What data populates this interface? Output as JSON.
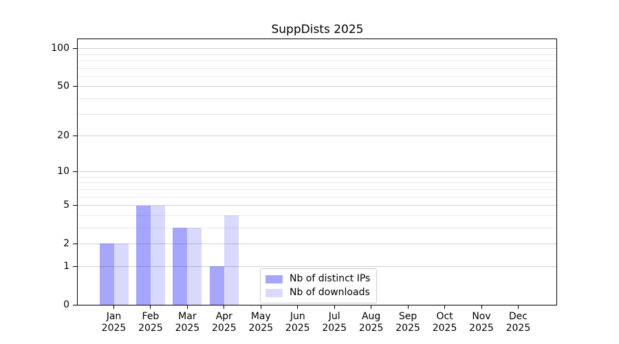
{
  "chart_data": {
    "type": "bar",
    "title": "SuppDists 2025",
    "categories": [
      "Jan",
      "Feb",
      "Mar",
      "Apr",
      "May",
      "Jun",
      "Jul",
      "Aug",
      "Sep",
      "Oct",
      "Nov",
      "Dec"
    ],
    "xtick_year": "2025",
    "series": [
      {
        "name": "Nb of distinct IPs",
        "color": "rgba(0,0,250,0.35)",
        "values": [
          2,
          5,
          3,
          1,
          0,
          0,
          0,
          0,
          0,
          0,
          0,
          0
        ]
      },
      {
        "name": "Nb of downloads",
        "color": "rgba(0,0,250,0.15)",
        "values": [
          2,
          5,
          3,
          4,
          0,
          0,
          0,
          0,
          0,
          0,
          0,
          0
        ]
      }
    ],
    "xlabel": "",
    "ylabel": "",
    "yscale": "log1p",
    "ylim": [
      0,
      119
    ],
    "yticks": [
      0,
      1,
      2,
      5,
      10,
      20,
      50,
      100
    ],
    "minor_yticks": [
      3,
      4,
      6,
      7,
      8,
      9,
      30,
      40,
      60,
      70,
      80,
      90
    ],
    "grid": true,
    "legend_position": "inside-bottom-left-of-center",
    "colors": {
      "major_grid": "#d0d0d0",
      "minor_grid": "#eaeaea",
      "spine": "#000000",
      "text": "#000000"
    }
  }
}
